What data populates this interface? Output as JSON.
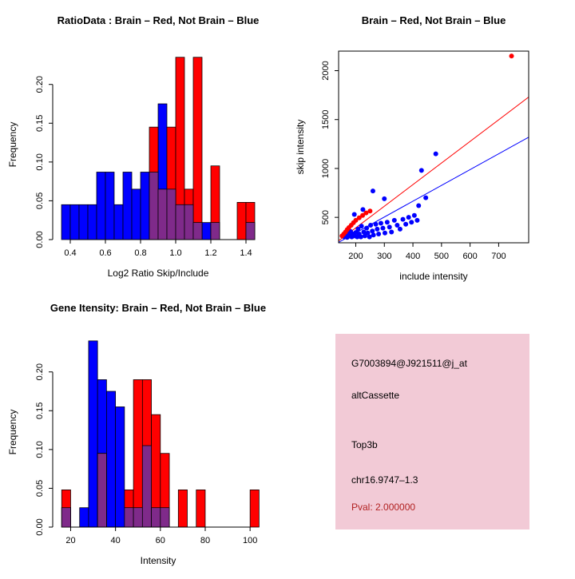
{
  "colors": {
    "red": "#ff0000",
    "blue": "#0000ff",
    "overlap": "#7f2a8a",
    "axis": "#000000",
    "background": "#ffffff",
    "info_bg": "#f2cad6",
    "pval": "#b22222"
  },
  "chart_data": [
    {
      "id": "ratio-hist",
      "type": "histogram",
      "title": "RatioData : Brain – Red, Not Brain – Blue",
      "xlabel": "Log2 Ratio Skip/Include",
      "ylabel": "Frequency",
      "xlim": [
        0.3,
        1.5
      ],
      "ylim": [
        0,
        0.245
      ],
      "xticks": {
        "values": [
          0.4,
          0.6,
          0.8,
          1.0,
          1.2,
          1.4
        ],
        "labels": [
          "0.4",
          "0.6",
          "0.8",
          "1.0",
          "1.2",
          "1.4"
        ]
      },
      "yticks": {
        "values": [
          0,
          0.05,
          0.1,
          0.15,
          0.2
        ],
        "labels": [
          "0.00",
          "0.05",
          "0.10",
          "0.15",
          "0.20"
        ]
      },
      "bin_width": 0.05,
      "series": [
        {
          "name": "Not Brain",
          "color_key": "blue",
          "bins": [
            [
              0.35,
              0.045
            ],
            [
              0.4,
              0.045
            ],
            [
              0.45,
              0.045
            ],
            [
              0.5,
              0.045
            ],
            [
              0.55,
              0.087
            ],
            [
              0.6,
              0.087
            ],
            [
              0.65,
              0.045
            ],
            [
              0.7,
              0.087
            ],
            [
              0.75,
              0.065
            ],
            [
              0.8,
              0.087
            ],
            [
              0.85,
              0.087
            ],
            [
              0.9,
              0.175
            ],
            [
              0.95,
              0.065
            ],
            [
              1.0,
              0.045
            ],
            [
              1.05,
              0.045
            ],
            [
              1.1,
              0.022
            ],
            [
              1.15,
              0.022
            ],
            [
              1.2,
              0.022
            ],
            [
              1.4,
              0.022
            ]
          ]
        },
        {
          "name": "Brain",
          "color_key": "red",
          "bins": [
            [
              0.85,
              0.145
            ],
            [
              0.9,
              0.065
            ],
            [
              0.95,
              0.145
            ],
            [
              1.0,
              0.235
            ],
            [
              1.05,
              0.065
            ],
            [
              1.1,
              0.235
            ],
            [
              1.2,
              0.095
            ],
            [
              1.35,
              0.048
            ],
            [
              1.4,
              0.048
            ]
          ]
        }
      ]
    },
    {
      "id": "intensity-scatter",
      "type": "scatter",
      "title": "Brain – Red, Not Brain – Blue",
      "xlabel": "include intensity",
      "ylabel": "skip intensity",
      "xlim": [
        140,
        805
      ],
      "ylim": [
        240,
        2200
      ],
      "xticks": {
        "values": [
          200,
          300,
          400,
          500,
          600,
          700
        ],
        "labels": [
          "200",
          "300",
          "400",
          "500",
          "600",
          "700"
        ]
      },
      "yticks": {
        "values": [
          500,
          1000,
          1500,
          2000
        ],
        "labels": [
          "500",
          "1000",
          "1500",
          "2000"
        ]
      },
      "series": [
        {
          "name": "Not Brain",
          "color_key": "blue",
          "points": [
            [
              160,
              300
            ],
            [
              165,
              320
            ],
            [
              170,
              295
            ],
            [
              172,
              340
            ],
            [
              178,
              310
            ],
            [
              182,
              355
            ],
            [
              186,
              300
            ],
            [
              190,
              330
            ],
            [
              195,
              530
            ],
            [
              196,
              310
            ],
            [
              200,
              345
            ],
            [
              205,
              300
            ],
            [
              208,
              380
            ],
            [
              212,
              330
            ],
            [
              218,
              300
            ],
            [
              220,
              410
            ],
            [
              225,
              580
            ],
            [
              228,
              350
            ],
            [
              232,
              310
            ],
            [
              238,
              390
            ],
            [
              242,
              340
            ],
            [
              248,
              300
            ],
            [
              252,
              420
            ],
            [
              258,
              360
            ],
            [
              260,
              770
            ],
            [
              262,
              320
            ],
            [
              270,
              430
            ],
            [
              275,
              380
            ],
            [
              280,
              330
            ],
            [
              288,
              440
            ],
            [
              295,
              390
            ],
            [
              300,
              690
            ],
            [
              302,
              340
            ],
            [
              310,
              450
            ],
            [
              318,
              400
            ],
            [
              325,
              350
            ],
            [
              335,
              470
            ],
            [
              345,
              420
            ],
            [
              355,
              380
            ],
            [
              365,
              480
            ],
            [
              375,
              430
            ],
            [
              385,
              500
            ],
            [
              395,
              450
            ],
            [
              405,
              520
            ],
            [
              415,
              470
            ],
            [
              420,
              620
            ],
            [
              430,
              980
            ],
            [
              445,
              700
            ],
            [
              480,
              1150
            ]
          ]
        },
        {
          "name": "Brain",
          "color_key": "red",
          "points": [
            [
              152,
              310
            ],
            [
              158,
              330
            ],
            [
              164,
              350
            ],
            [
              170,
              375
            ],
            [
              176,
              395
            ],
            [
              184,
              420
            ],
            [
              192,
              445
            ],
            [
              200,
              470
            ],
            [
              212,
              495
            ],
            [
              224,
              520
            ],
            [
              236,
              545
            ],
            [
              250,
              565
            ],
            [
              745,
              2150
            ]
          ]
        }
      ],
      "lines": [
        {
          "color_key": "red",
          "from": [
            140,
            260
          ],
          "to": [
            805,
            1730
          ]
        },
        {
          "color_key": "blue",
          "from": [
            140,
            245
          ],
          "to": [
            805,
            1320
          ]
        }
      ]
    },
    {
      "id": "gene-hist",
      "type": "histogram",
      "title": "Gene Itensity: Brain – Red, Not Brain – Blue",
      "xlabel": "Intensity",
      "ylabel": "Frequency",
      "xlim": [
        12,
        106
      ],
      "ylim": [
        0,
        0.245
      ],
      "xticks": {
        "values": [
          20,
          40,
          60,
          80,
          100
        ],
        "labels": [
          "20",
          "40",
          "60",
          "80",
          "100"
        ]
      },
      "yticks": {
        "values": [
          0,
          0.05,
          0.1,
          0.15,
          0.2
        ],
        "labels": [
          "0.00",
          "0.05",
          "0.10",
          "0.15",
          "0.20"
        ]
      },
      "bin_width": 4,
      "series": [
        {
          "name": "Not Brain",
          "color_key": "blue",
          "bins": [
            [
              16,
              0.025
            ],
            [
              24,
              0.025
            ],
            [
              28,
              0.24
            ],
            [
              32,
              0.19
            ],
            [
              36,
              0.175
            ],
            [
              40,
              0.155
            ],
            [
              44,
              0.025
            ],
            [
              48,
              0.025
            ],
            [
              52,
              0.105
            ],
            [
              56,
              0.025
            ],
            [
              60,
              0.025
            ]
          ]
        },
        {
          "name": "Brain",
          "color_key": "red",
          "bins": [
            [
              16,
              0.048
            ],
            [
              32,
              0.095
            ],
            [
              44,
              0.048
            ],
            [
              48,
              0.19
            ],
            [
              52,
              0.19
            ],
            [
              56,
              0.145
            ],
            [
              60,
              0.095
            ],
            [
              68,
              0.048
            ],
            [
              76,
              0.048
            ],
            [
              100,
              0.048
            ]
          ]
        }
      ]
    }
  ],
  "info_panel": {
    "lines": [
      {
        "text": "G7003894@J921511@j_at",
        "color": "#000000"
      },
      {
        "text": "altCassette",
        "color": "#000000"
      },
      {
        "text": "Top3b",
        "color": "#000000"
      },
      {
        "text": "chr16.9747–1.3",
        "color": "#000000"
      },
      {
        "text": "Pval: 2.000000",
        "color": "#b22222"
      }
    ]
  }
}
